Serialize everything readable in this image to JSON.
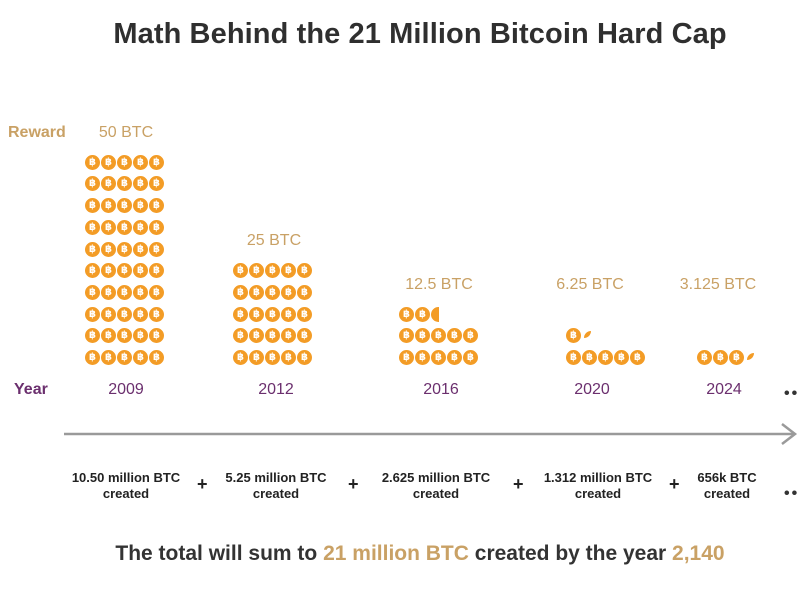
{
  "title": "Math Behind the 21 Million Bitcoin Hard Cap",
  "labels": {
    "reward": "Reward",
    "year": "Year",
    "more": "••"
  },
  "colors": {
    "accent": "#c9a165",
    "year": "#6b2f6e",
    "coin": "#f39c26"
  },
  "epochs": [
    {
      "reward": "50 BTC",
      "year": "2009",
      "created_line1": "10.50 million BTC",
      "created_line2": "created",
      "coins": 50
    },
    {
      "reward": "25 BTC",
      "year": "2012",
      "created_line1": "5.25 million BTC",
      "created_line2": "created",
      "coins": 25
    },
    {
      "reward": "12.5 BTC",
      "year": "2016",
      "created_line1": "2.625 million BTC",
      "created_line2": "created",
      "coins": 12.5
    },
    {
      "reward": "6.25 BTC",
      "year": "2020",
      "created_line1": "1.312 million BTC",
      "created_line2": "created",
      "coins": 6.25
    },
    {
      "reward": "3.125 BTC",
      "year": "2024",
      "created_line1": "656k BTC",
      "created_line2": "created",
      "coins": 3.125
    }
  ],
  "plus": "+",
  "summary": {
    "part1": "The total will sum to ",
    "highlight1": "21 million BTC",
    "part2": " created by the year ",
    "highlight2": "2,140"
  },
  "coin_symbol": "฿"
}
